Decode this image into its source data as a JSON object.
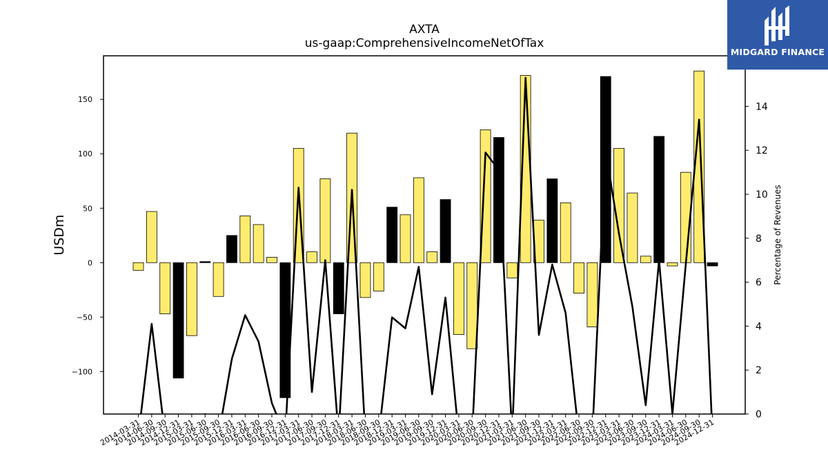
{
  "logo": {
    "text": "MIDGARD FINANCE",
    "background": "#2f5aa8"
  },
  "chart_data": {
    "type": "bar",
    "title": "AXTA",
    "subtitle": "us-gaap:ComprehensiveIncomeNetOfTax",
    "ylabel": "USDm",
    "y2label": "Percentage of Revenues",
    "ylim": [
      -139,
      190
    ],
    "y2lim": [
      0,
      16.3
    ],
    "yticks": [
      -100,
      -50,
      0,
      50,
      100,
      150
    ],
    "y2ticks": [
      0,
      2,
      4,
      6,
      8,
      10,
      12,
      14,
      16
    ],
    "colors": {
      "annual": "#000000",
      "quarterly": "#ffec6e",
      "line": "#000000"
    },
    "categories": [
      "2014-03-31",
      "2014-06-30",
      "2014-09-30",
      "2014-12-31",
      "2015-03-31",
      "2015-06-30",
      "2015-09-30",
      "2015-12-31",
      "2016-03-31",
      "2016-06-30",
      "2016-09-30",
      "2016-12-31",
      "2017-03-31",
      "2017-06-30",
      "2017-09-30",
      "2017-12-31",
      "2018-03-31",
      "2018-06-30",
      "2018-09-30",
      "2018-12-31",
      "2019-03-31",
      "2019-06-30",
      "2019-09-30",
      "2019-12-31",
      "2020-03-31",
      "2020-06-30",
      "2020-09-30",
      "2020-12-31",
      "2021-03-31",
      "2021-06-30",
      "2021-09-30",
      "2021-12-31",
      "2022-03-31",
      "2022-06-30",
      "2022-09-30",
      "2022-12-31",
      "2023-03-31",
      "2023-06-30",
      "2023-09-30",
      "2023-12-31",
      "2024-03-31",
      "2024-06-30",
      "2024-09-30",
      "2024-12-31"
    ],
    "series": [
      {
        "values": [
          -7,
          47,
          -47,
          -106,
          -67,
          1,
          -31,
          25,
          43,
          35,
          5,
          -124,
          105,
          10,
          77,
          -47,
          119,
          -32,
          -26,
          51,
          44,
          78,
          10,
          58,
          -66,
          -79,
          122,
          115,
          -14,
          172,
          39,
          77,
          55,
          -28,
          -59,
          171,
          105,
          64,
          6,
          116,
          -3,
          83,
          176,
          -3
        ],
        "period": [
          "Q",
          "Q",
          "Q",
          "FY",
          "Q",
          "FY",
          "Q",
          "FY",
          "Q",
          "Q",
          "Q",
          "FY",
          "Q",
          "Q",
          "Q",
          "FY",
          "Q",
          "Q",
          "Q",
          "FY",
          "Q",
          "Q",
          "Q",
          "FY",
          "Q",
          "Q",
          "Q",
          "FY",
          "Q",
          "Q",
          "Q",
          "FY",
          "Q",
          "Q",
          "Q",
          "FY",
          "Q",
          "Q",
          "Q",
          "FY",
          "Q",
          "Q",
          "Q",
          "FY"
        ]
      },
      {
        "type": "line",
        "values": [
          -1,
          4.1,
          -1,
          null,
          -1,
          0,
          -1,
          2.5,
          4.5,
          3.3,
          0.5,
          -1,
          10.3,
          1,
          7,
          -1,
          10.2,
          -1,
          -1,
          4.4,
          3.9,
          6.7,
          0.9,
          5.3,
          -1,
          -1,
          11.9,
          11.1,
          -1,
          15.3,
          3.6,
          6.8,
          4.6,
          -1,
          -1,
          12,
          8.2,
          4.9,
          0.4,
          7,
          0,
          6.8,
          13.4,
          -1
        ]
      }
    ]
  }
}
